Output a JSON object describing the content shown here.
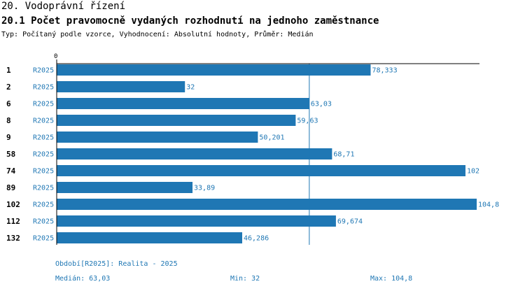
{
  "header": {
    "section_title": "20. Vodoprávní řízení",
    "chart_title": "20.1 Počet pravomocně vydaných rozhodnutí na jednoho zaměstnance",
    "type_line": "Typ: Počítaný podle vzorce, Vyhodnocení: Absolutní hodnoty, Průměr: Medián"
  },
  "colors": {
    "bar": "#1f77b4",
    "label": "#1f77b4",
    "median_line": "#1f77b4",
    "axis": "#000000"
  },
  "chart_data": {
    "type": "bar",
    "orientation": "horizontal",
    "axis_zero_label": "0",
    "xlim": [
      0,
      104.8
    ],
    "median": 63.03,
    "rows": [
      {
        "category": "1",
        "series": "R2025",
        "value": 78.333,
        "label": "78,333"
      },
      {
        "category": "2",
        "series": "R2025",
        "value": 32,
        "label": "32"
      },
      {
        "category": "6",
        "series": "R2025",
        "value": 63.03,
        "label": "63,03"
      },
      {
        "category": "8",
        "series": "R2025",
        "value": 59.63,
        "label": "59,63"
      },
      {
        "category": "9",
        "series": "R2025",
        "value": 50.201,
        "label": "50,201"
      },
      {
        "category": "58",
        "series": "R2025",
        "value": 68.71,
        "label": "68,71"
      },
      {
        "category": "74",
        "series": "R2025",
        "value": 102,
        "label": "102"
      },
      {
        "category": "89",
        "series": "R2025",
        "value": 33.89,
        "label": "33,89"
      },
      {
        "category": "102",
        "series": "R2025",
        "value": 104.8,
        "label": "104,8"
      },
      {
        "category": "112",
        "series": "R2025",
        "value": 69.674,
        "label": "69,674"
      },
      {
        "category": "132",
        "series": "R2025",
        "value": 46.286,
        "label": "46,286"
      }
    ]
  },
  "footer": {
    "period": "Období[R2025]: Realita - 2025",
    "median": "Medián: 63,03",
    "min": "Min: 32",
    "max": "Max: 104,8"
  }
}
